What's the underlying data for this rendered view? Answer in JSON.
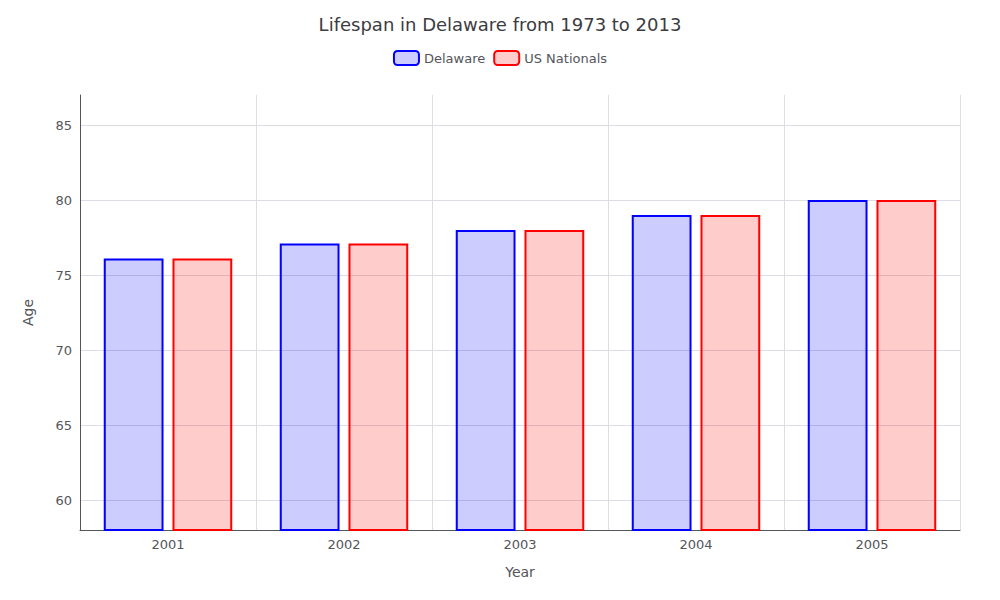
{
  "chart_data": {
    "type": "bar",
    "title": "Lifespan in Delaware from 1973 to 2013",
    "xlabel": "Year",
    "ylabel": "Age",
    "categories": [
      "2001",
      "2002",
      "2003",
      "2004",
      "2005"
    ],
    "series": [
      {
        "name": "Delaware",
        "color": "#0000ff",
        "values": [
          76.1,
          77.1,
          78.0,
          79.0,
          80.0
        ]
      },
      {
        "name": "US Nationals",
        "color": "#ff0000",
        "values": [
          76.1,
          77.1,
          78.0,
          79.0,
          80.0
        ]
      }
    ],
    "ylim": [
      58,
      87
    ],
    "yticks": [
      60,
      65,
      70,
      75,
      80,
      85
    ],
    "grid": true,
    "legend": "top"
  }
}
